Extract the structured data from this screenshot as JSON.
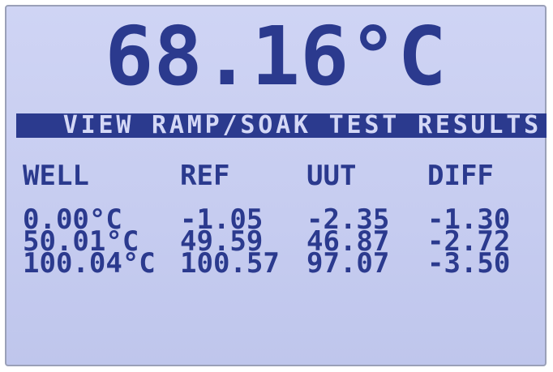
{
  "display": {
    "reading": "68.16°C",
    "banner": "VIEW RAMP/SOAK TEST RESULTS",
    "table": {
      "headers": [
        "WELL",
        "REF",
        "UUT",
        "DIFF"
      ],
      "rows": [
        [
          "0.00°C",
          "-1.05",
          "-2.35",
          "-1.30"
        ],
        [
          "50.01°C",
          "49.59",
          "46.87",
          "-2.72"
        ],
        [
          "100.04°C",
          "100.57",
          "97.07",
          "-3.50"
        ]
      ]
    }
  }
}
